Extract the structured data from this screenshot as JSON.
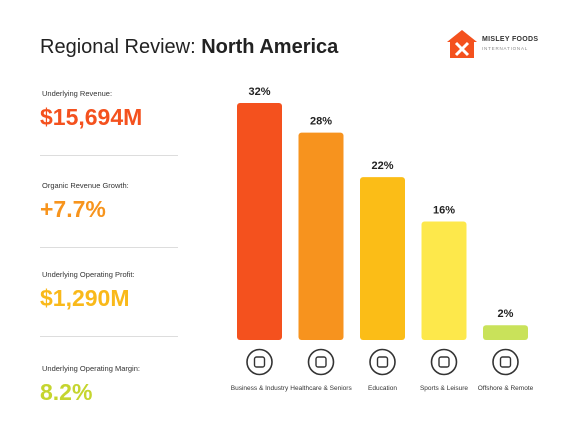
{
  "header": {
    "title_prefix": "Regional Review:",
    "title_region": "North America",
    "logo_name": "MISLEY FOODS",
    "logo_sub": "INTERNATIONAL"
  },
  "kpis": [
    {
      "label": "Underlying Revenue:",
      "value": "$15,694M",
      "color": "#f4511e"
    },
    {
      "label": "Organic Revenue Growth:",
      "value": "+7.7%",
      "color": "#f7941d"
    },
    {
      "label": "Underlying Operating Profit:",
      "value": "$1,290M",
      "color": "#f9b91a"
    },
    {
      "label": "Underlying Operating Margin:",
      "value": "8.2%",
      "color": "#c5d52f"
    }
  ],
  "chart_data": {
    "type": "bar",
    "categories": [
      "Business & Industry",
      "Healthcare & Seniors",
      "Education",
      "Sports & Leisure",
      "Offshore & Remote"
    ],
    "values": [
      32,
      28,
      22,
      16,
      2
    ],
    "value_labels": [
      "32%",
      "28%",
      "22%",
      "16%",
      "2%"
    ],
    "colors": [
      "#f4511e",
      "#f7931e",
      "#fbbd17",
      "#fde84b",
      "#c9e25a"
    ]
  }
}
